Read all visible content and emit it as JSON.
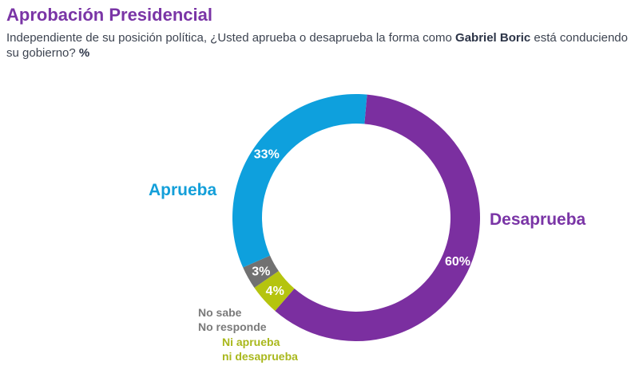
{
  "header": {
    "title": "Aprobación Presidencial",
    "question_pre": "Independiente de su posición política, ¿Usted aprueba o desaprueba la forma como ",
    "question_name": "Gabriel Boric",
    "question_post": " está conduciendo su gobierno? ",
    "question_unit": "%"
  },
  "chart_data": {
    "type": "pie",
    "donut": true,
    "title": "Aprobación Presidencial",
    "slices": [
      {
        "label": "Desaprueba",
        "value": 60,
        "value_label": "60%",
        "color": "#7b2fa0"
      },
      {
        "label": "Ni aprueba ni desaprueba",
        "value": 4,
        "value_label": "4%",
        "color": "#b5c40f"
      },
      {
        "label": "No sabe No responde",
        "value": 3,
        "value_label": "3%",
        "color": "#717171"
      },
      {
        "label": "Aprueba",
        "value": 33,
        "value_label": "33%",
        "color": "#0ea0dd"
      }
    ]
  },
  "labels": {
    "aprueba": "Aprueba",
    "desaprueba": "Desaprueba",
    "nosabe_1": "No sabe",
    "nosabe_2": "No responde",
    "ni_1": "Ni aprueba",
    "ni_2": "ni desaprueba"
  }
}
